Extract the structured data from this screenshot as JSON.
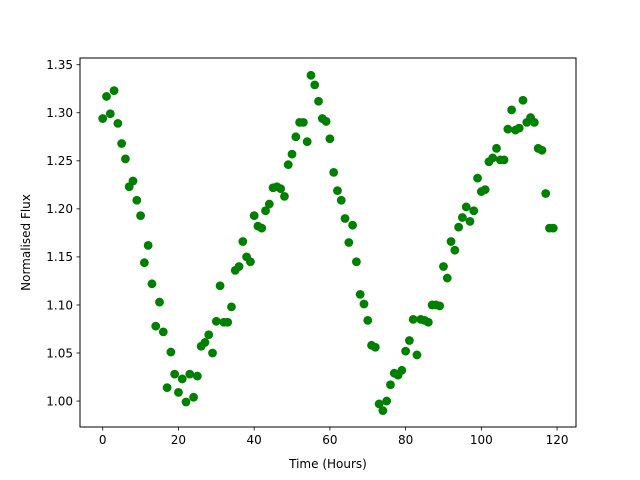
{
  "chart_data": {
    "type": "scatter",
    "xlabel": "Time (Hours)",
    "ylabel": "Normalised Flux",
    "xlim": [
      -6,
      125
    ],
    "ylim": [
      0.973,
      1.357
    ],
    "x_ticks": [
      0,
      20,
      40,
      60,
      80,
      100,
      120
    ],
    "y_ticks": [
      1.0,
      1.05,
      1.1,
      1.15,
      1.2,
      1.25,
      1.3,
      1.35
    ],
    "y_tick_labels": [
      "1.00",
      "1.05",
      "1.10",
      "1.15",
      "1.20",
      "1.25",
      "1.30",
      "1.35"
    ],
    "grid": false,
    "marker_color": "#008000",
    "series": [
      {
        "points": [
          [
            0,
            1.294
          ],
          [
            1,
            1.317
          ],
          [
            2,
            1.299
          ],
          [
            3,
            1.323
          ],
          [
            4,
            1.289
          ],
          [
            5,
            1.268
          ],
          [
            6,
            1.252
          ],
          [
            7,
            1.223
          ],
          [
            8,
            1.229
          ],
          [
            9,
            1.209
          ],
          [
            10,
            1.193
          ],
          [
            11,
            1.144
          ],
          [
            12,
            1.162
          ],
          [
            13,
            1.122
          ],
          [
            14,
            1.078
          ],
          [
            15,
            1.103
          ],
          [
            16,
            1.072
          ],
          [
            17,
            1.014
          ],
          [
            18,
            1.051
          ],
          [
            19,
            1.028
          ],
          [
            20,
            1.009
          ],
          [
            21,
            1.023
          ],
          [
            22,
            0.999
          ],
          [
            23,
            1.028
          ],
          [
            24,
            1.004
          ],
          [
            25,
            1.026
          ],
          [
            26,
            1.057
          ],
          [
            27,
            1.061
          ],
          [
            28,
            1.069
          ],
          [
            29,
            1.05
          ],
          [
            30,
            1.083
          ],
          [
            31,
            1.12
          ],
          [
            32,
            1.082
          ],
          [
            33,
            1.082
          ],
          [
            34,
            1.098
          ],
          [
            35,
            1.136
          ],
          [
            36,
            1.14
          ],
          [
            37,
            1.166
          ],
          [
            38,
            1.15
          ],
          [
            39,
            1.145
          ],
          [
            40,
            1.193
          ],
          [
            41,
            1.182
          ],
          [
            42,
            1.18
          ],
          [
            43,
            1.198
          ],
          [
            44,
            1.205
          ],
          [
            45,
            1.222
          ],
          [
            46,
            1.223
          ],
          [
            47,
            1.221
          ],
          [
            48,
            1.213
          ],
          [
            49,
            1.246
          ],
          [
            50,
            1.257
          ],
          [
            51,
            1.275
          ],
          [
            52,
            1.29
          ],
          [
            53,
            1.29
          ],
          [
            54,
            1.27
          ],
          [
            55,
            1.339
          ],
          [
            56,
            1.329
          ],
          [
            57,
            1.312
          ],
          [
            58,
            1.294
          ],
          [
            59,
            1.291
          ],
          [
            60,
            1.273
          ],
          [
            61,
            1.238
          ],
          [
            62,
            1.219
          ],
          [
            63,
            1.209
          ],
          [
            64,
            1.19
          ],
          [
            65,
            1.165
          ],
          [
            66,
            1.183
          ],
          [
            67,
            1.145
          ],
          [
            68,
            1.111
          ],
          [
            69,
            1.101
          ],
          [
            70,
            1.084
          ],
          [
            71,
            1.058
          ],
          [
            72,
            1.056
          ],
          [
            73,
            0.997
          ],
          [
            74,
            0.99
          ],
          [
            75,
            1.0
          ],
          [
            76,
            1.017
          ],
          [
            77,
            1.029
          ],
          [
            78,
            1.027
          ],
          [
            79,
            1.032
          ],
          [
            80,
            1.052
          ],
          [
            81,
            1.063
          ],
          [
            82,
            1.085
          ],
          [
            83,
            1.048
          ],
          [
            84,
            1.085
          ],
          [
            85,
            1.084
          ],
          [
            86,
            1.082
          ],
          [
            87,
            1.1
          ],
          [
            88,
            1.1
          ],
          [
            89,
            1.099
          ],
          [
            90,
            1.14
          ],
          [
            91,
            1.128
          ],
          [
            92,
            1.166
          ],
          [
            93,
            1.157
          ],
          [
            94,
            1.181
          ],
          [
            95,
            1.191
          ],
          [
            96,
            1.202
          ],
          [
            97,
            1.187
          ],
          [
            98,
            1.198
          ],
          [
            99,
            1.232
          ],
          [
            100,
            1.218
          ],
          [
            101,
            1.22
          ],
          [
            102,
            1.249
          ],
          [
            103,
            1.253
          ],
          [
            104,
            1.263
          ],
          [
            105,
            1.251
          ],
          [
            106,
            1.251
          ],
          [
            107,
            1.283
          ],
          [
            108,
            1.303
          ],
          [
            109,
            1.282
          ],
          [
            110,
            1.284
          ],
          [
            111,
            1.313
          ],
          [
            112,
            1.29
          ],
          [
            113,
            1.295
          ],
          [
            114,
            1.29
          ],
          [
            115,
            1.263
          ],
          [
            116,
            1.261
          ],
          [
            117,
            1.216
          ],
          [
            118,
            1.18
          ],
          [
            119,
            1.18
          ]
        ]
      }
    ]
  }
}
